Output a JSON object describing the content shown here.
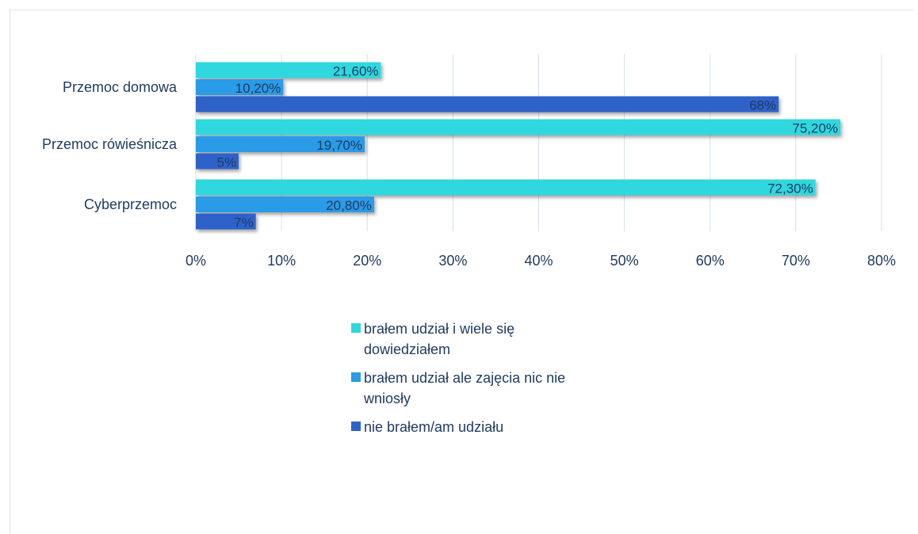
{
  "chart_data": {
    "type": "bar",
    "orientation": "horizontal",
    "categories": [
      "Przemoc domowa",
      "Przemoc rówieśnicza",
      "Cyberprzemoc"
    ],
    "series": [
      {
        "name": "brałem udział i wiele się dowiedziałem",
        "values": [
          21.6,
          75.2,
          72.3
        ],
        "labels": [
          "21,60%",
          "75,20%",
          "72,30%"
        ],
        "color": "#2fd8de"
      },
      {
        "name": "brałem udział ale zajęcia nic nie wniosły",
        "values": [
          10.2,
          19.7,
          20.8
        ],
        "labels": [
          "10,20%",
          "19,70%",
          "20,80%"
        ],
        "color": "#2a9be6"
      },
      {
        "name": "nie brałem/am udziału",
        "values": [
          68,
          5,
          7
        ],
        "labels": [
          "68%",
          "5%",
          "7%"
        ],
        "color": "#2d62c9"
      }
    ],
    "xticks": [
      "0%",
      "10%",
      "20%",
      "30%",
      "40%",
      "50%",
      "60%",
      "70%",
      "80%"
    ],
    "xlim": [
      0,
      80
    ],
    "grid": true,
    "legend_position": "bottom"
  }
}
